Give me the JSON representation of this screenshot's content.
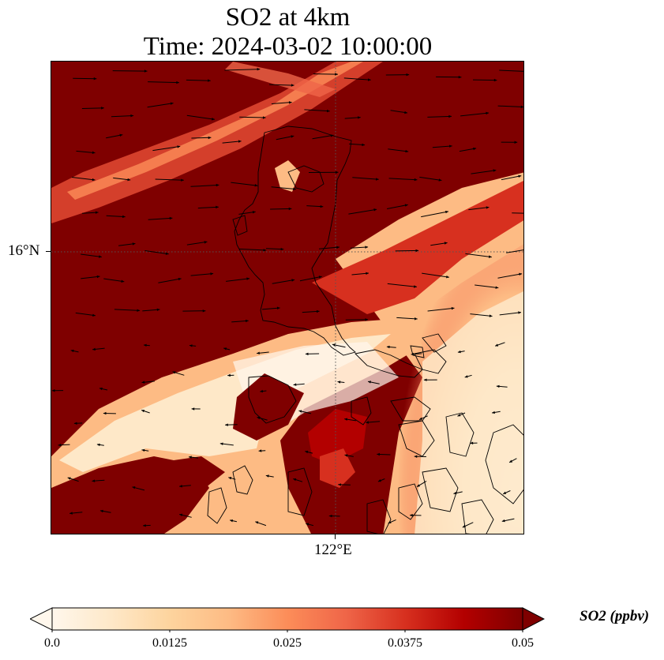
{
  "title": {
    "line1": "SO2 at 4km",
    "line2": "Time: 2024-03-02 10:00:00"
  },
  "map": {
    "gridlines": {
      "latitude": "16°N",
      "longitude": "122°E",
      "style": "dotted"
    },
    "field": "SO2 concentration at 4 km",
    "features": [
      "coastlines",
      "wind-vectors"
    ],
    "colormap": "OrRd"
  },
  "colorbar": {
    "label": "SO2 (ppbv)",
    "min": 0.0,
    "max": 0.05,
    "ticks": [
      "0.0",
      "0.0125",
      "0.025",
      "0.0375",
      "0.05"
    ],
    "extend": "both",
    "colors": [
      "#fff7ec",
      "#fee8c8",
      "#fdd49e",
      "#fdbb84",
      "#fc8d59",
      "#ef6548",
      "#d7301f",
      "#b30000",
      "#7f0000"
    ]
  }
}
